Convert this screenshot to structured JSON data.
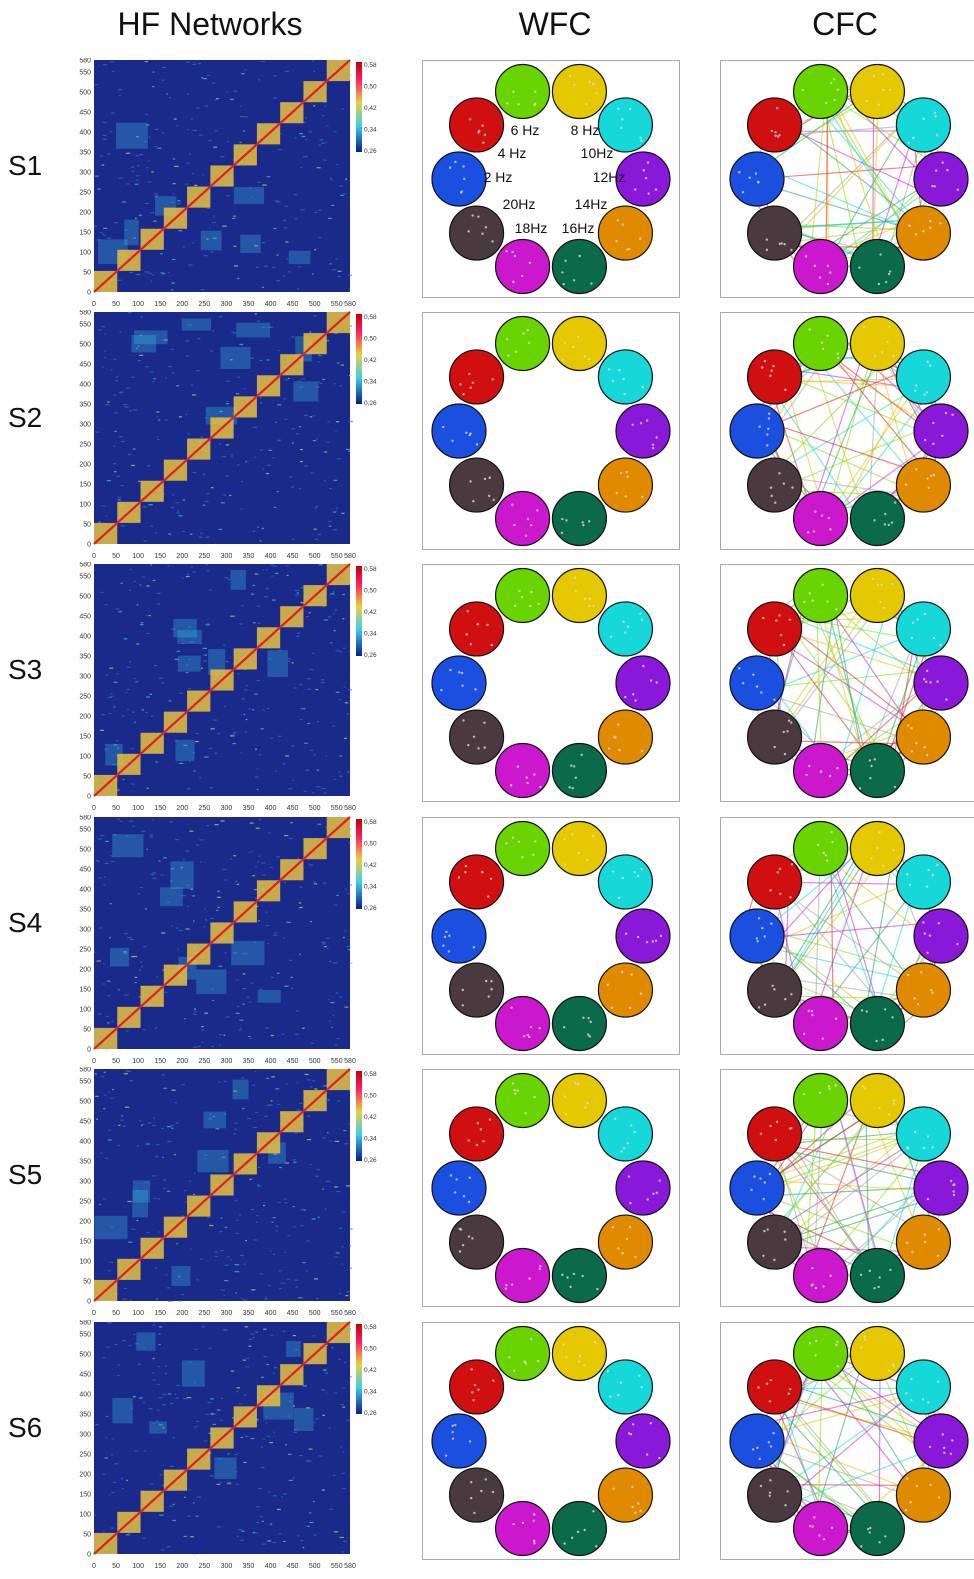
{
  "columns": [
    "HF Networks",
    "WFC",
    "CFC"
  ],
  "rows": [
    "S1",
    "S2",
    "S3",
    "S4",
    "S5",
    "S6"
  ],
  "matrix": {
    "ticks": [
      "0",
      "50",
      "100",
      "150",
      "200",
      "250",
      "300",
      "350",
      "400",
      "450",
      "500",
      "550",
      "580"
    ],
    "colorbar_ticks": [
      "0,58",
      "0,50",
      "0,42",
      "0,34",
      "0,26"
    ]
  },
  "frequencies": [
    "2 Hz",
    "4 Hz",
    "6 Hz",
    "8 Hz",
    "10Hz",
    "12Hz",
    "14Hz",
    "16Hz",
    "18Hz",
    "20Hz"
  ],
  "circle_colors": [
    "#1a4fe0",
    "#d01010",
    "#6ad400",
    "#e6c800",
    "#16d8d8",
    "#8a18d8",
    "#e08a00",
    "#0a6a4a",
    "#cc18cc",
    "#4a3a40"
  ]
}
